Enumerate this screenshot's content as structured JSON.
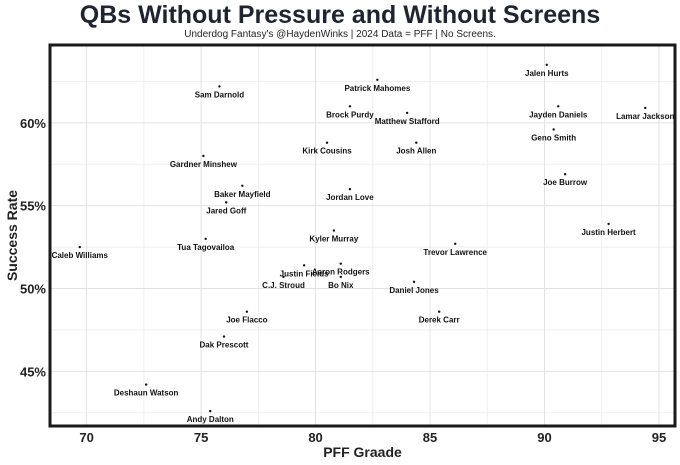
{
  "chart_data": {
    "type": "scatter",
    "title": "QBs Without Pressure and Without Screens",
    "subtitle": "Underdog Fantasy's @HaydenWinks | 2024 Data = PFF | No Screens.",
    "xlabel": "PFF Graade",
    "ylabel": "Success Rate",
    "xlim": [
      68.4,
      95.7
    ],
    "ylim": [
      41.7,
      64.7
    ],
    "xticks": [
      70,
      75,
      80,
      85,
      90,
      95
    ],
    "yticks": [
      45,
      50,
      55,
      60
    ],
    "xtick_labels": [
      "70",
      "75",
      "80",
      "85",
      "90",
      "95"
    ],
    "ytick_labels": [
      "45%",
      "50%",
      "55%",
      "60%"
    ],
    "grid": true,
    "points": [
      {
        "name": "Jalen Hurts",
        "x": 90.1,
        "y": 63.5
      },
      {
        "name": "Sam Darnold",
        "x": 75.8,
        "y": 62.2
      },
      {
        "name": "Patrick Mahomes",
        "x": 82.7,
        "y": 62.6
      },
      {
        "name": "Jayden Daniels",
        "x": 90.6,
        "y": 61.0
      },
      {
        "name": "Brock Purdy",
        "x": 81.5,
        "y": 61.0
      },
      {
        "name": "Lamar Jackson",
        "x": 94.4,
        "y": 60.9
      },
      {
        "name": "Matthew Stafford",
        "x": 84.0,
        "y": 60.6
      },
      {
        "name": "Geno Smith",
        "x": 90.4,
        "y": 59.6
      },
      {
        "name": "Kirk Cousins",
        "x": 80.5,
        "y": 58.8
      },
      {
        "name": "Josh Allen",
        "x": 84.4,
        "y": 58.8
      },
      {
        "name": "Gardner Minshew",
        "x": 75.1,
        "y": 58.0
      },
      {
        "name": "Joe Burrow",
        "x": 90.9,
        "y": 56.9
      },
      {
        "name": "Jordan Love",
        "x": 81.5,
        "y": 56.0
      },
      {
        "name": "Baker Mayfield",
        "x": 76.8,
        "y": 56.2
      },
      {
        "name": "Jared Goff",
        "x": 76.1,
        "y": 55.2
      },
      {
        "name": "Kyler Murray",
        "x": 80.8,
        "y": 53.5
      },
      {
        "name": "Justin Herbert",
        "x": 92.8,
        "y": 53.9
      },
      {
        "name": "Caleb Williams",
        "x": 69.7,
        "y": 52.5
      },
      {
        "name": "Tua Tagovailoa",
        "x": 75.2,
        "y": 53.0
      },
      {
        "name": "Trevor Lawrence",
        "x": 86.1,
        "y": 52.7
      },
      {
        "name": "Aaron Rodgers",
        "x": 81.1,
        "y": 51.5
      },
      {
        "name": "Justin Fields",
        "x": 79.5,
        "y": 51.4
      },
      {
        "name": "C.J. Stroud",
        "x": 78.6,
        "y": 50.7
      },
      {
        "name": "Bo Nix",
        "x": 81.1,
        "y": 50.7
      },
      {
        "name": "Daniel Jones",
        "x": 84.3,
        "y": 50.4
      },
      {
        "name": "Joe Flacco",
        "x": 77.0,
        "y": 48.6
      },
      {
        "name": "Derek Carr",
        "x": 85.4,
        "y": 48.6
      },
      {
        "name": "Dak Prescott",
        "x": 76.0,
        "y": 47.1
      },
      {
        "name": "Deshaun Watson",
        "x": 72.6,
        "y": 44.2
      },
      {
        "name": "Andy Dalton",
        "x": 75.4,
        "y": 42.6
      }
    ]
  }
}
